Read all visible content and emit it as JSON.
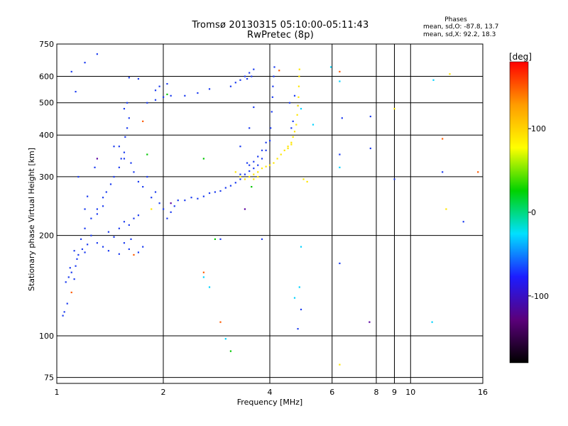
{
  "chart_data": {
    "type": "scatter",
    "title": "Tromsø 20130315 05:10:00-05:11:43",
    "subtitle": "RwPretec (8p)",
    "xlabel": "Frequency [MHz]",
    "ylabel": "Stationary phase Virtual Height [km]",
    "x_scale": "log",
    "y_scale": "log",
    "xlim": [
      1,
      16
    ],
    "ylim": [
      72,
      750
    ],
    "x_ticks": [
      1,
      2,
      4,
      6,
      8,
      9,
      10,
      16
    ],
    "x_tick_labels": [
      "1",
      "2",
      "4",
      "6",
      "8",
      "9",
      "10",
      "16"
    ],
    "y_ticks": [
      75,
      100,
      200,
      300,
      400,
      500,
      600,
      750
    ],
    "y_tick_labels": [
      "75",
      "100",
      "200",
      "300",
      "400",
      "500",
      "600",
      "750"
    ],
    "grid": true,
    "colorbar": {
      "title": "[deg]",
      "range": [
        -180,
        180
      ],
      "ticks": [
        -100,
        0,
        100
      ],
      "tick_labels": [
        "-100",
        "0",
        "100"
      ],
      "colors": [
        "#000000",
        "#5b007a",
        "#1c1cff",
        "#00e0ff",
        "#00d200",
        "#ffff00",
        "#ff9c00",
        "#ff0000"
      ]
    },
    "stats": {
      "header": "Phases",
      "o_line": "mean, sd,O: -87.8, 13.7",
      "x_line": "mean, sd,X:  92.2, 18.3"
    },
    "series": [
      {
        "color": "#1c3cf0",
        "points": [
          [
            1.04,
            115
          ],
          [
            1.05,
            118
          ],
          [
            1.07,
            125
          ],
          [
            1.06,
            145
          ],
          [
            1.08,
            150
          ],
          [
            1.1,
            155
          ],
          [
            1.09,
            160
          ],
          [
            1.12,
            148
          ],
          [
            1.13,
            162
          ],
          [
            1.14,
            170
          ],
          [
            1.15,
            175
          ],
          [
            1.12,
            180
          ],
          [
            1.18,
            182
          ],
          [
            1.2,
            178
          ],
          [
            1.22,
            188
          ],
          [
            1.17,
            195
          ],
          [
            1.25,
            200
          ],
          [
            1.3,
            190
          ],
          [
            1.35,
            185
          ],
          [
            1.4,
            205
          ],
          [
            1.45,
            198
          ],
          [
            1.5,
            210
          ],
          [
            1.55,
            220
          ],
          [
            1.6,
            215
          ],
          [
            1.65,
            225
          ],
          [
            1.7,
            230
          ],
          [
            1.75,
            185
          ],
          [
            1.7,
            178
          ],
          [
            1.6,
            182
          ],
          [
            1.5,
            176
          ],
          [
            1.4,
            180
          ],
          [
            1.55,
            190
          ],
          [
            1.62,
            195
          ],
          [
            1.2,
            210
          ],
          [
            1.25,
            225
          ],
          [
            1.3,
            240
          ],
          [
            1.35,
            260
          ],
          [
            1.38,
            270
          ],
          [
            1.42,
            285
          ],
          [
            1.45,
            300
          ],
          [
            1.5,
            320
          ],
          [
            1.52,
            340
          ],
          [
            1.55,
            355
          ],
          [
            1.5,
            370
          ],
          [
            1.56,
            395
          ],
          [
            1.58,
            420
          ],
          [
            1.6,
            450
          ],
          [
            1.55,
            480
          ],
          [
            1.58,
            500
          ],
          [
            1.62,
            330
          ],
          [
            1.65,
            310
          ],
          [
            1.7,
            290
          ],
          [
            1.75,
            280
          ],
          [
            1.8,
            300
          ],
          [
            1.85,
            260
          ],
          [
            1.9,
            270
          ],
          [
            1.95,
            250
          ],
          [
            2.0,
            240
          ],
          [
            2.05,
            225
          ],
          [
            2.1,
            235
          ],
          [
            2.15,
            245
          ],
          [
            2.2,
            255
          ],
          [
            2.3,
            255
          ],
          [
            2.4,
            260
          ],
          [
            2.5,
            258
          ],
          [
            2.6,
            262
          ],
          [
            2.7,
            268
          ],
          [
            2.8,
            270
          ],
          [
            2.9,
            272
          ],
          [
            3.0,
            278
          ],
          [
            3.1,
            282
          ],
          [
            3.2,
            288
          ],
          [
            3.3,
            295
          ],
          [
            3.4,
            305
          ],
          [
            3.5,
            312
          ],
          [
            3.6,
            318
          ],
          [
            3.7,
            325
          ],
          [
            3.8,
            340
          ],
          [
            3.9,
            360
          ],
          [
            4.0,
            385
          ],
          [
            4.02,
            420
          ],
          [
            4.05,
            470
          ],
          [
            4.07,
            520
          ],
          [
            4.08,
            560
          ],
          [
            4.1,
            600
          ],
          [
            4.12,
            640
          ],
          [
            3.9,
            380
          ],
          [
            3.8,
            360
          ],
          [
            3.7,
            345
          ],
          [
            3.6,
            333
          ],
          [
            3.5,
            325
          ],
          [
            3.45,
            330
          ],
          [
            3.3,
            305
          ],
          [
            1.8,
            500
          ],
          [
            1.9,
            510
          ],
          [
            2.0,
            520
          ],
          [
            2.1,
            525
          ],
          [
            1.95,
            560
          ],
          [
            2.05,
            570
          ],
          [
            1.9,
            545
          ],
          [
            2.3,
            525
          ],
          [
            2.5,
            535
          ],
          [
            2.7,
            550
          ],
          [
            3.1,
            560
          ],
          [
            3.2,
            575
          ],
          [
            3.3,
            585
          ],
          [
            3.4,
            600
          ],
          [
            3.5,
            615
          ],
          [
            3.6,
            630
          ],
          [
            3.55,
            600
          ],
          [
            3.45,
            590
          ],
          [
            1.2,
            660
          ],
          [
            1.1,
            620
          ],
          [
            1.13,
            540
          ],
          [
            1.3,
            700
          ],
          [
            1.6,
            595
          ],
          [
            1.7,
            590
          ],
          [
            4.8,
            490
          ],
          [
            4.65,
            440
          ],
          [
            4.6,
            420
          ],
          [
            4.55,
            500
          ],
          [
            4.7,
            525
          ],
          [
            3.6,
            485
          ],
          [
            3.5,
            420
          ],
          [
            3.3,
            370
          ],
          [
            2.9,
            195
          ],
          [
            3.8,
            195
          ],
          [
            4.9,
            120
          ],
          [
            4.8,
            105
          ],
          [
            6.3,
            165
          ],
          [
            6.3,
            350
          ],
          [
            6.4,
            450
          ],
          [
            7.7,
            455
          ],
          [
            7.7,
            365
          ],
          [
            9.0,
            295
          ],
          [
            12.3,
            310
          ],
          [
            14.1,
            220
          ],
          [
            1.55,
            340
          ],
          [
            1.45,
            370
          ],
          [
            1.35,
            245
          ],
          [
            1.3,
            232
          ],
          [
            1.22,
            262
          ],
          [
            1.2,
            240
          ],
          [
            1.15,
            300
          ],
          [
            1.28,
            320
          ]
        ]
      },
      {
        "color": "#ffe600",
        "points": [
          [
            3.2,
            310
          ],
          [
            3.3,
            300
          ],
          [
            3.4,
            295
          ],
          [
            3.5,
            300
          ],
          [
            3.6,
            305
          ],
          [
            3.7,
            310
          ],
          [
            3.8,
            318
          ],
          [
            3.9,
            322
          ],
          [
            4.0,
            325
          ],
          [
            4.1,
            330
          ],
          [
            4.2,
            340
          ],
          [
            4.3,
            350
          ],
          [
            4.4,
            360
          ],
          [
            4.5,
            370
          ],
          [
            4.6,
            380
          ],
          [
            4.65,
            395
          ],
          [
            4.7,
            410
          ],
          [
            4.75,
            430
          ],
          [
            4.78,
            460
          ],
          [
            4.8,
            490
          ],
          [
            4.82,
            520
          ],
          [
            4.83,
            560
          ],
          [
            4.84,
            600
          ],
          [
            4.85,
            630
          ],
          [
            4.6,
            375
          ],
          [
            4.5,
            365
          ],
          [
            3.6,
            295
          ],
          [
            3.7,
            300
          ],
          [
            12.9,
            610
          ],
          [
            9.0,
            480
          ],
          [
            4.98,
            295
          ],
          [
            5.1,
            290
          ],
          [
            6.3,
            82
          ],
          [
            1.85,
            240
          ],
          [
            12.6,
            240
          ]
        ]
      },
      {
        "color": "#00d2ff",
        "points": [
          [
            4.9,
            185
          ],
          [
            4.85,
            140
          ],
          [
            6.3,
            580
          ],
          [
            5.95,
            640
          ],
          [
            4.9,
            480
          ],
          [
            6.3,
            320
          ],
          [
            5.3,
            430
          ],
          [
            3.0,
            98
          ],
          [
            2.6,
            150
          ],
          [
            11.6,
            585
          ],
          [
            11.5,
            110
          ],
          [
            4.7,
            130
          ],
          [
            2.7,
            140
          ]
        ]
      },
      {
        "color": "#ff5a00",
        "points": [
          [
            1.75,
            440
          ],
          [
            4.25,
            625
          ],
          [
            6.3,
            620
          ],
          [
            2.9,
            110
          ],
          [
            2.6,
            155
          ],
          [
            15.5,
            310
          ],
          [
            12.3,
            390
          ],
          [
            1.1,
            135
          ],
          [
            1.65,
            175
          ]
        ]
      },
      {
        "color": "#00c800",
        "points": [
          [
            2.8,
            195
          ],
          [
            3.1,
            90
          ],
          [
            3.55,
            280
          ],
          [
            1.8,
            350
          ],
          [
            2.05,
            530
          ],
          [
            2.6,
            340
          ]
        ]
      },
      {
        "color": "#5a00a0",
        "points": [
          [
            2.1,
            250
          ],
          [
            3.4,
            240
          ],
          [
            7.65,
            110
          ],
          [
            1.3,
            340
          ]
        ]
      }
    ]
  }
}
